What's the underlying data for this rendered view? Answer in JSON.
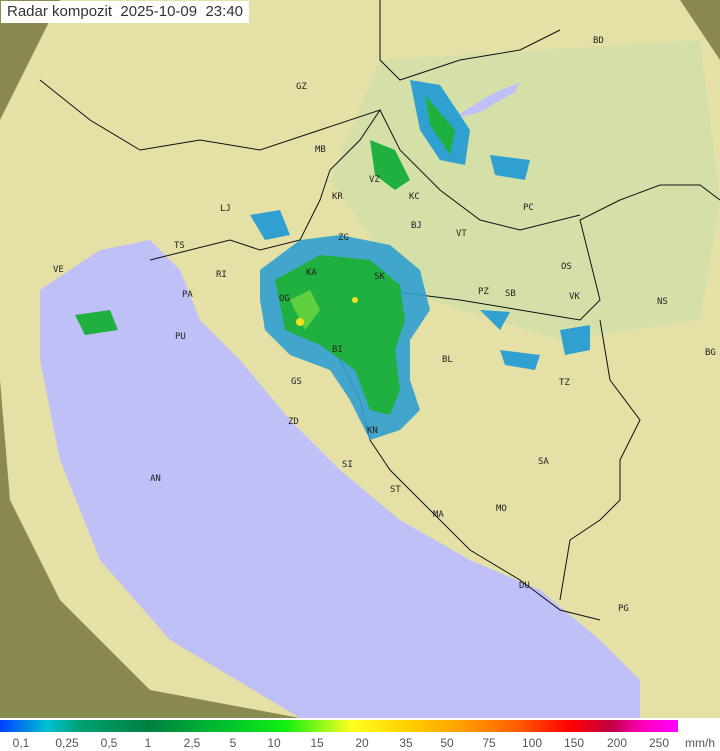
{
  "header": {
    "title": "Radar kompozit",
    "date": "2025-10-09",
    "time": "23:40"
  },
  "colors": {
    "sea": "#c0c0f8",
    "land": "#e8e4a8",
    "outside": "#8a8a50",
    "rain_light": "#30a0d0",
    "rain_medium": "#20b040",
    "rain_heavy": "#f0e020"
  },
  "cities": [
    {
      "code": "GZ"
    },
    {
      "code": "BD"
    },
    {
      "code": "MB"
    },
    {
      "code": "LJ"
    },
    {
      "code": "KR"
    },
    {
      "code": "ZG"
    },
    {
      "code": "KC"
    },
    {
      "code": "VZ"
    },
    {
      "code": "BJ"
    },
    {
      "code": "VT"
    },
    {
      "code": "PC"
    },
    {
      "code": "TS"
    },
    {
      "code": "VE"
    },
    {
      "code": "RI"
    },
    {
      "code": "KA"
    },
    {
      "code": "SK"
    },
    {
      "code": "OS"
    },
    {
      "code": "PZ"
    },
    {
      "code": "SB"
    },
    {
      "code": "VK"
    },
    {
      "code": "NS"
    },
    {
      "code": "PA"
    },
    {
      "code": "OG"
    },
    {
      "code": "PU"
    },
    {
      "code": "BI"
    },
    {
      "code": "BG"
    },
    {
      "code": "BL"
    },
    {
      "code": "TZ"
    },
    {
      "code": "GS"
    },
    {
      "code": "ZD"
    },
    {
      "code": "KN"
    },
    {
      "code": "SI"
    },
    {
      "code": "SA"
    },
    {
      "code": "AN"
    },
    {
      "code": "ST"
    },
    {
      "code": "MA"
    },
    {
      "code": "MO"
    },
    {
      "code": "DU"
    },
    {
      "code": "PG"
    }
  ],
  "legend": {
    "unit": "mm/h",
    "labels": [
      "0,1",
      "0,25",
      "0,5",
      "1",
      "2,5",
      "5",
      "10",
      "15",
      "20",
      "35",
      "50",
      "75",
      "100",
      "150",
      "200",
      "250"
    ]
  }
}
